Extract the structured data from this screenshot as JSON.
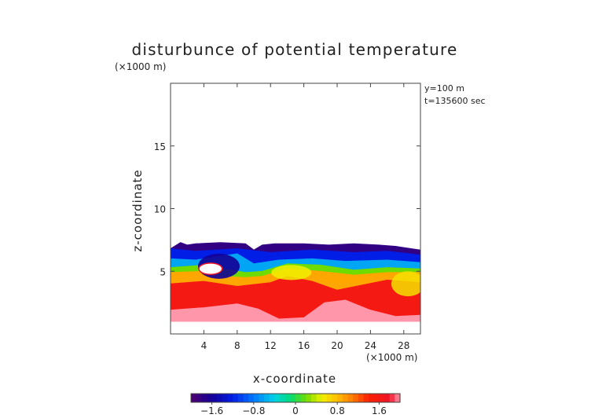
{
  "chart_data": {
    "type": "heatmap",
    "title": "disturbunce of potential temperature",
    "unit_top": "(×1000 m)",
    "unit_bottom": "(×1000 m)",
    "annotation": [
      "y=100 m",
      "t=135600 sec"
    ],
    "xlabel": "x-coordinate",
    "ylabel": "z-coordinate",
    "xlim": [
      0,
      30
    ],
    "ylim": [
      0,
      20
    ],
    "xticks": [
      "4",
      "8",
      "12",
      "16",
      "20",
      "24",
      "28"
    ],
    "yticks": [
      "5",
      "10",
      "15"
    ],
    "colorbar": {
      "range": [
        -2.0,
        2.0
      ],
      "ticks": [
        "−1.6",
        "−0.8",
        "0",
        "0.8",
        "1.6"
      ],
      "tick_values": [
        -1.6,
        -0.8,
        0,
        0.8,
        1.6
      ]
    },
    "field": {
      "top_boundary": [
        [
          1.2,
          7.3
        ],
        [
          2.0,
          7.1
        ],
        [
          3.0,
          7.2
        ],
        [
          6.0,
          7.3
        ],
        [
          9.0,
          7.2
        ],
        [
          10.0,
          6.7
        ],
        [
          11.0,
          7.1
        ],
        [
          12.5,
          7.2
        ],
        [
          16.0,
          7.2
        ],
        [
          19.0,
          7.1
        ],
        [
          22.0,
          7.2
        ],
        [
          25.0,
          7.1
        ],
        [
          27.0,
          7.0
        ],
        [
          30.0,
          6.7
        ]
      ],
      "layers": [
        {
          "value": -1.8,
          "top": "boundary",
          "bottom": [
            [
              0,
              6.8
            ],
            [
              3.0,
              6.6
            ],
            [
              8.0,
              6.8
            ],
            [
              12.0,
              6.5
            ],
            [
              17.0,
              6.7
            ],
            [
              22.0,
              6.5
            ],
            [
              26.0,
              6.6
            ],
            [
              30.0,
              6.3
            ]
          ]
        },
        {
          "value": -1.2,
          "top": "previous",
          "bottom": [
            [
              0,
              6.0
            ],
            [
              3.0,
              5.9
            ],
            [
              8.0,
              6.4
            ],
            [
              10.0,
              5.6
            ],
            [
              13.0,
              5.9
            ],
            [
              17.0,
              6.0
            ],
            [
              21.0,
              5.8
            ],
            [
              26.0,
              5.9
            ],
            [
              30.0,
              5.7
            ]
          ]
        },
        {
          "value": -0.6,
          "top": "previous",
          "bottom": [
            [
              0,
              5.3
            ],
            [
              4.0,
              5.5
            ],
            [
              6.5,
              5.2
            ],
            [
              9.0,
              4.9
            ],
            [
              11.0,
              5.0
            ],
            [
              14.0,
              5.6
            ],
            [
              18.0,
              5.5
            ],
            [
              22.0,
              5.1
            ],
            [
              26.0,
              5.3
            ],
            [
              30.0,
              5.2
            ]
          ]
        },
        {
          "value": 0.2,
          "top": "previous",
          "bottom": [
            [
              0,
              4.9
            ],
            [
              4.0,
              5.0
            ],
            [
              6.0,
              4.6
            ],
            [
              9.0,
              4.5
            ],
            [
              11.0,
              4.6
            ],
            [
              14.0,
              5.2
            ],
            [
              18.0,
              5.0
            ],
            [
              22.0,
              4.7
            ],
            [
              26.0,
              4.9
            ],
            [
              30.0,
              4.9
            ]
          ]
        },
        {
          "value": 0.9,
          "top": "previous",
          "bottom": [
            [
              0,
              4.0
            ],
            [
              4.0,
              4.2
            ],
            [
              8.0,
              3.8
            ],
            [
              12.0,
              4.1
            ],
            [
              14.0,
              4.6
            ],
            [
              17.0,
              4.2
            ],
            [
              20.0,
              3.5
            ],
            [
              23.0,
              3.9
            ],
            [
              26.0,
              4.3
            ],
            [
              30.0,
              4.1
            ]
          ]
        },
        {
          "value": 1.6,
          "top": "previous",
          "bottom": [
            [
              0,
              1.9
            ],
            [
              4.0,
              2.1
            ],
            [
              8.0,
              2.4
            ],
            [
              10.5,
              2.0
            ],
            [
              13.0,
              1.2
            ],
            [
              16.0,
              1.3
            ],
            [
              18.5,
              2.5
            ],
            [
              21.0,
              2.7
            ],
            [
              24.0,
              1.9
            ],
            [
              27.0,
              1.4
            ],
            [
              30.0,
              1.5
            ]
          ]
        },
        {
          "value": 2.0,
          "top": "previous",
          "bottom": [
            [
              0,
              1.0
            ],
            [
              30.0,
              1.0
            ]
          ]
        }
      ],
      "features": [
        {
          "value": 2.3,
          "center": [
            4.8,
            5.2
          ],
          "size": [
            1.4,
            0.45
          ]
        },
        {
          "value": -1.6,
          "center": [
            5.8,
            5.4
          ],
          "size": [
            2.5,
            1.0
          ]
        },
        {
          "value": 0.5,
          "center": [
            14.5,
            4.9
          ],
          "size": [
            2.4,
            0.6
          ]
        },
        {
          "value": 0.6,
          "center": [
            28.5,
            4.0
          ],
          "size": [
            2.0,
            1.0
          ]
        }
      ]
    }
  }
}
